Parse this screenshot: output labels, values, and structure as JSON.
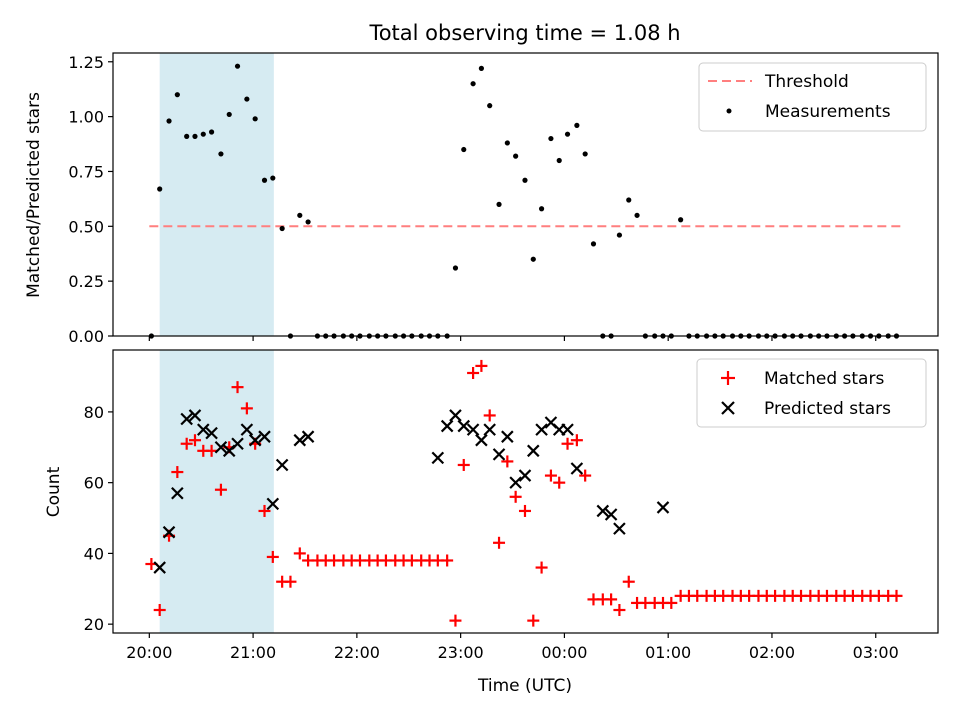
{
  "title": "Total observing time = 1.08 h",
  "chart_data": [
    {
      "type": "scatter",
      "ylabel": "Matched/Predicted stars",
      "ylim": [
        0,
        1.29
      ],
      "yticks": [
        0,
        0.25,
        0.5,
        0.75,
        1.0,
        1.25
      ],
      "yticklabels": [
        "0.00",
        "0.25",
        "0.50",
        "0.75",
        "1.00",
        "1.25"
      ],
      "xlim": [
        -0.35,
        7.6
      ],
      "shaded_interval_hours": [
        0.1,
        1.2
      ],
      "shade_color": "#add8e6",
      "threshold": {
        "name": "Threshold",
        "value": 0.5,
        "x_range": [
          0,
          7.25
        ],
        "color": "#ff7f7f"
      },
      "legend": {
        "position": "upper right",
        "entries": [
          "Threshold",
          "Measurements"
        ]
      },
      "series": [
        {
          "name": "Measurements",
          "color": "#000000",
          "x": [
            0.02,
            0.1,
            0.19,
            0.27,
            0.36,
            0.44,
            0.52,
            0.6,
            0.69,
            0.77,
            0.85,
            0.94,
            1.02,
            1.11,
            1.19,
            1.28,
            1.36,
            1.45,
            1.53,
            1.62,
            1.7,
            1.78,
            1.87,
            1.95,
            2.03,
            2.12,
            2.2,
            2.28,
            2.37,
            2.45,
            2.53,
            2.62,
            2.7,
            2.78,
            2.87,
            2.95,
            3.03,
            3.12,
            3.2,
            3.28,
            3.37,
            3.45,
            3.53,
            3.62,
            3.7,
            3.78,
            3.87,
            3.95,
            4.03,
            4.12,
            4.2,
            4.28,
            4.37,
            4.45,
            4.53,
            4.62,
            4.7,
            4.78,
            4.87,
            4.95,
            5.03,
            5.12,
            5.2,
            5.28,
            5.37,
            5.45,
            5.53,
            5.62,
            5.7,
            5.78,
            5.87,
            5.95,
            6.03,
            6.12,
            6.2,
            6.28,
            6.37,
            6.45,
            6.53,
            6.62,
            6.7,
            6.78,
            6.87,
            6.95,
            7.03,
            7.12,
            7.2
          ],
          "y": [
            0.0,
            0.67,
            0.98,
            1.1,
            0.91,
            0.91,
            0.92,
            0.93,
            0.83,
            1.01,
            1.23,
            1.08,
            0.99,
            0.71,
            0.72,
            0.49,
            0.0,
            0.55,
            0.52,
            0.0,
            0.0,
            0.0,
            0.0,
            0.0,
            0.0,
            0.0,
            0.0,
            0.0,
            0.0,
            0.0,
            0.0,
            0.0,
            0.0,
            0.0,
            0.0,
            0.31,
            0.85,
            1.15,
            1.22,
            1.05,
            0.6,
            0.88,
            0.82,
            0.71,
            0.35,
            0.58,
            0.9,
            0.8,
            0.92,
            0.96,
            0.83,
            0.42,
            0.0,
            0.0,
            0.46,
            0.62,
            0.55,
            0.0,
            0.0,
            0.0,
            0.0,
            0.53,
            0.0,
            0.0,
            0.0,
            0.0,
            0.0,
            0.0,
            0.0,
            0.0,
            0.0,
            0.0,
            0.0,
            0.0,
            0.0,
            0.0,
            0.0,
            0.0,
            0.0,
            0.0,
            0.0,
            0.0,
            0.0,
            0.0,
            0.0,
            0.0,
            0.0
          ]
        }
      ]
    },
    {
      "type": "scatter",
      "ylabel": "Count",
      "xlabel": "Time (UTC)",
      "ylim": [
        17.5,
        97.5
      ],
      "yticks": [
        20,
        40,
        60,
        80
      ],
      "yticklabels": [
        "20",
        "40",
        "60",
        "80"
      ],
      "xlim": [
        -0.35,
        7.6
      ],
      "xticks": [
        0,
        1,
        2,
        3,
        4,
        5,
        6,
        7
      ],
      "xticklabels": [
        "20:00",
        "21:00",
        "22:00",
        "23:00",
        "00:00",
        "01:00",
        "02:00",
        "03:00"
      ],
      "shaded_interval_hours": [
        0.1,
        1.2
      ],
      "shade_color": "#add8e6",
      "legend": {
        "position": "upper right",
        "entries": [
          "Matched stars",
          "Predicted stars"
        ]
      },
      "series": [
        {
          "name": "Matched stars",
          "marker": "+",
          "color": "#ff0000",
          "x": [
            0.02,
            0.1,
            0.19,
            0.27,
            0.36,
            0.44,
            0.52,
            0.6,
            0.69,
            0.77,
            0.85,
            0.94,
            1.02,
            1.11,
            1.19,
            1.28,
            1.36,
            1.45,
            1.53,
            1.62,
            1.7,
            1.78,
            1.87,
            1.95,
            2.03,
            2.12,
            2.2,
            2.28,
            2.37,
            2.45,
            2.53,
            2.62,
            2.7,
            2.78,
            2.87,
            2.95,
            3.03,
            3.12,
            3.2,
            3.28,
            3.37,
            3.45,
            3.53,
            3.62,
            3.7,
            3.78,
            3.87,
            3.95,
            4.03,
            4.12,
            4.2,
            4.28,
            4.37,
            4.45,
            4.53,
            4.62,
            4.7,
            4.78,
            4.87,
            4.95,
            5.03,
            5.12,
            5.2,
            5.28,
            5.37,
            5.45,
            5.53,
            5.62,
            5.7,
            5.78,
            5.87,
            5.95,
            6.03,
            6.12,
            6.2,
            6.28,
            6.37,
            6.45,
            6.53,
            6.62,
            6.7,
            6.78,
            6.87,
            6.95,
            7.03,
            7.12,
            7.2
          ],
          "y": [
            37,
            24,
            45,
            63,
            71,
            72,
            69,
            69,
            58,
            70,
            87,
            81,
            71,
            52,
            39,
            32,
            32,
            40,
            38,
            38,
            38,
            38,
            38,
            38,
            38,
            38,
            38,
            38,
            38,
            38,
            38,
            38,
            38,
            38,
            38,
            21,
            65,
            91,
            93,
            79,
            43,
            66,
            56,
            52,
            21,
            36,
            62,
            60,
            71,
            72,
            62,
            27,
            27,
            27,
            24,
            32,
            26,
            26,
            26,
            26,
            26,
            28,
            28,
            28,
            28,
            28,
            28,
            28,
            28,
            28,
            28,
            28,
            28,
            28,
            28,
            28,
            28,
            28,
            28,
            28,
            28,
            28,
            28,
            28,
            28,
            28,
            28
          ]
        },
        {
          "name": "Predicted stars",
          "marker": "x",
          "color": "#000000",
          "x": [
            0.1,
            0.19,
            0.27,
            0.36,
            0.44,
            0.52,
            0.6,
            0.69,
            0.77,
            0.85,
            0.94,
            1.02,
            1.11,
            1.19,
            1.28,
            1.45,
            1.53,
            2.78,
            2.87,
            2.95,
            3.03,
            3.12,
            3.2,
            3.28,
            3.37,
            3.45,
            3.53,
            3.62,
            3.7,
            3.78,
            3.87,
            3.95,
            4.03,
            4.12,
            4.37,
            4.45,
            4.53,
            4.95
          ],
          "y": [
            36,
            46,
            57,
            78,
            79,
            75,
            74,
            70,
            69,
            71,
            75,
            72,
            73,
            54,
            65,
            72,
            73,
            67,
            76,
            79,
            76,
            75,
            72,
            75,
            68,
            73,
            60,
            62,
            69,
            75,
            77,
            75,
            75,
            64,
            52,
            51,
            47,
            53
          ]
        }
      ]
    }
  ]
}
